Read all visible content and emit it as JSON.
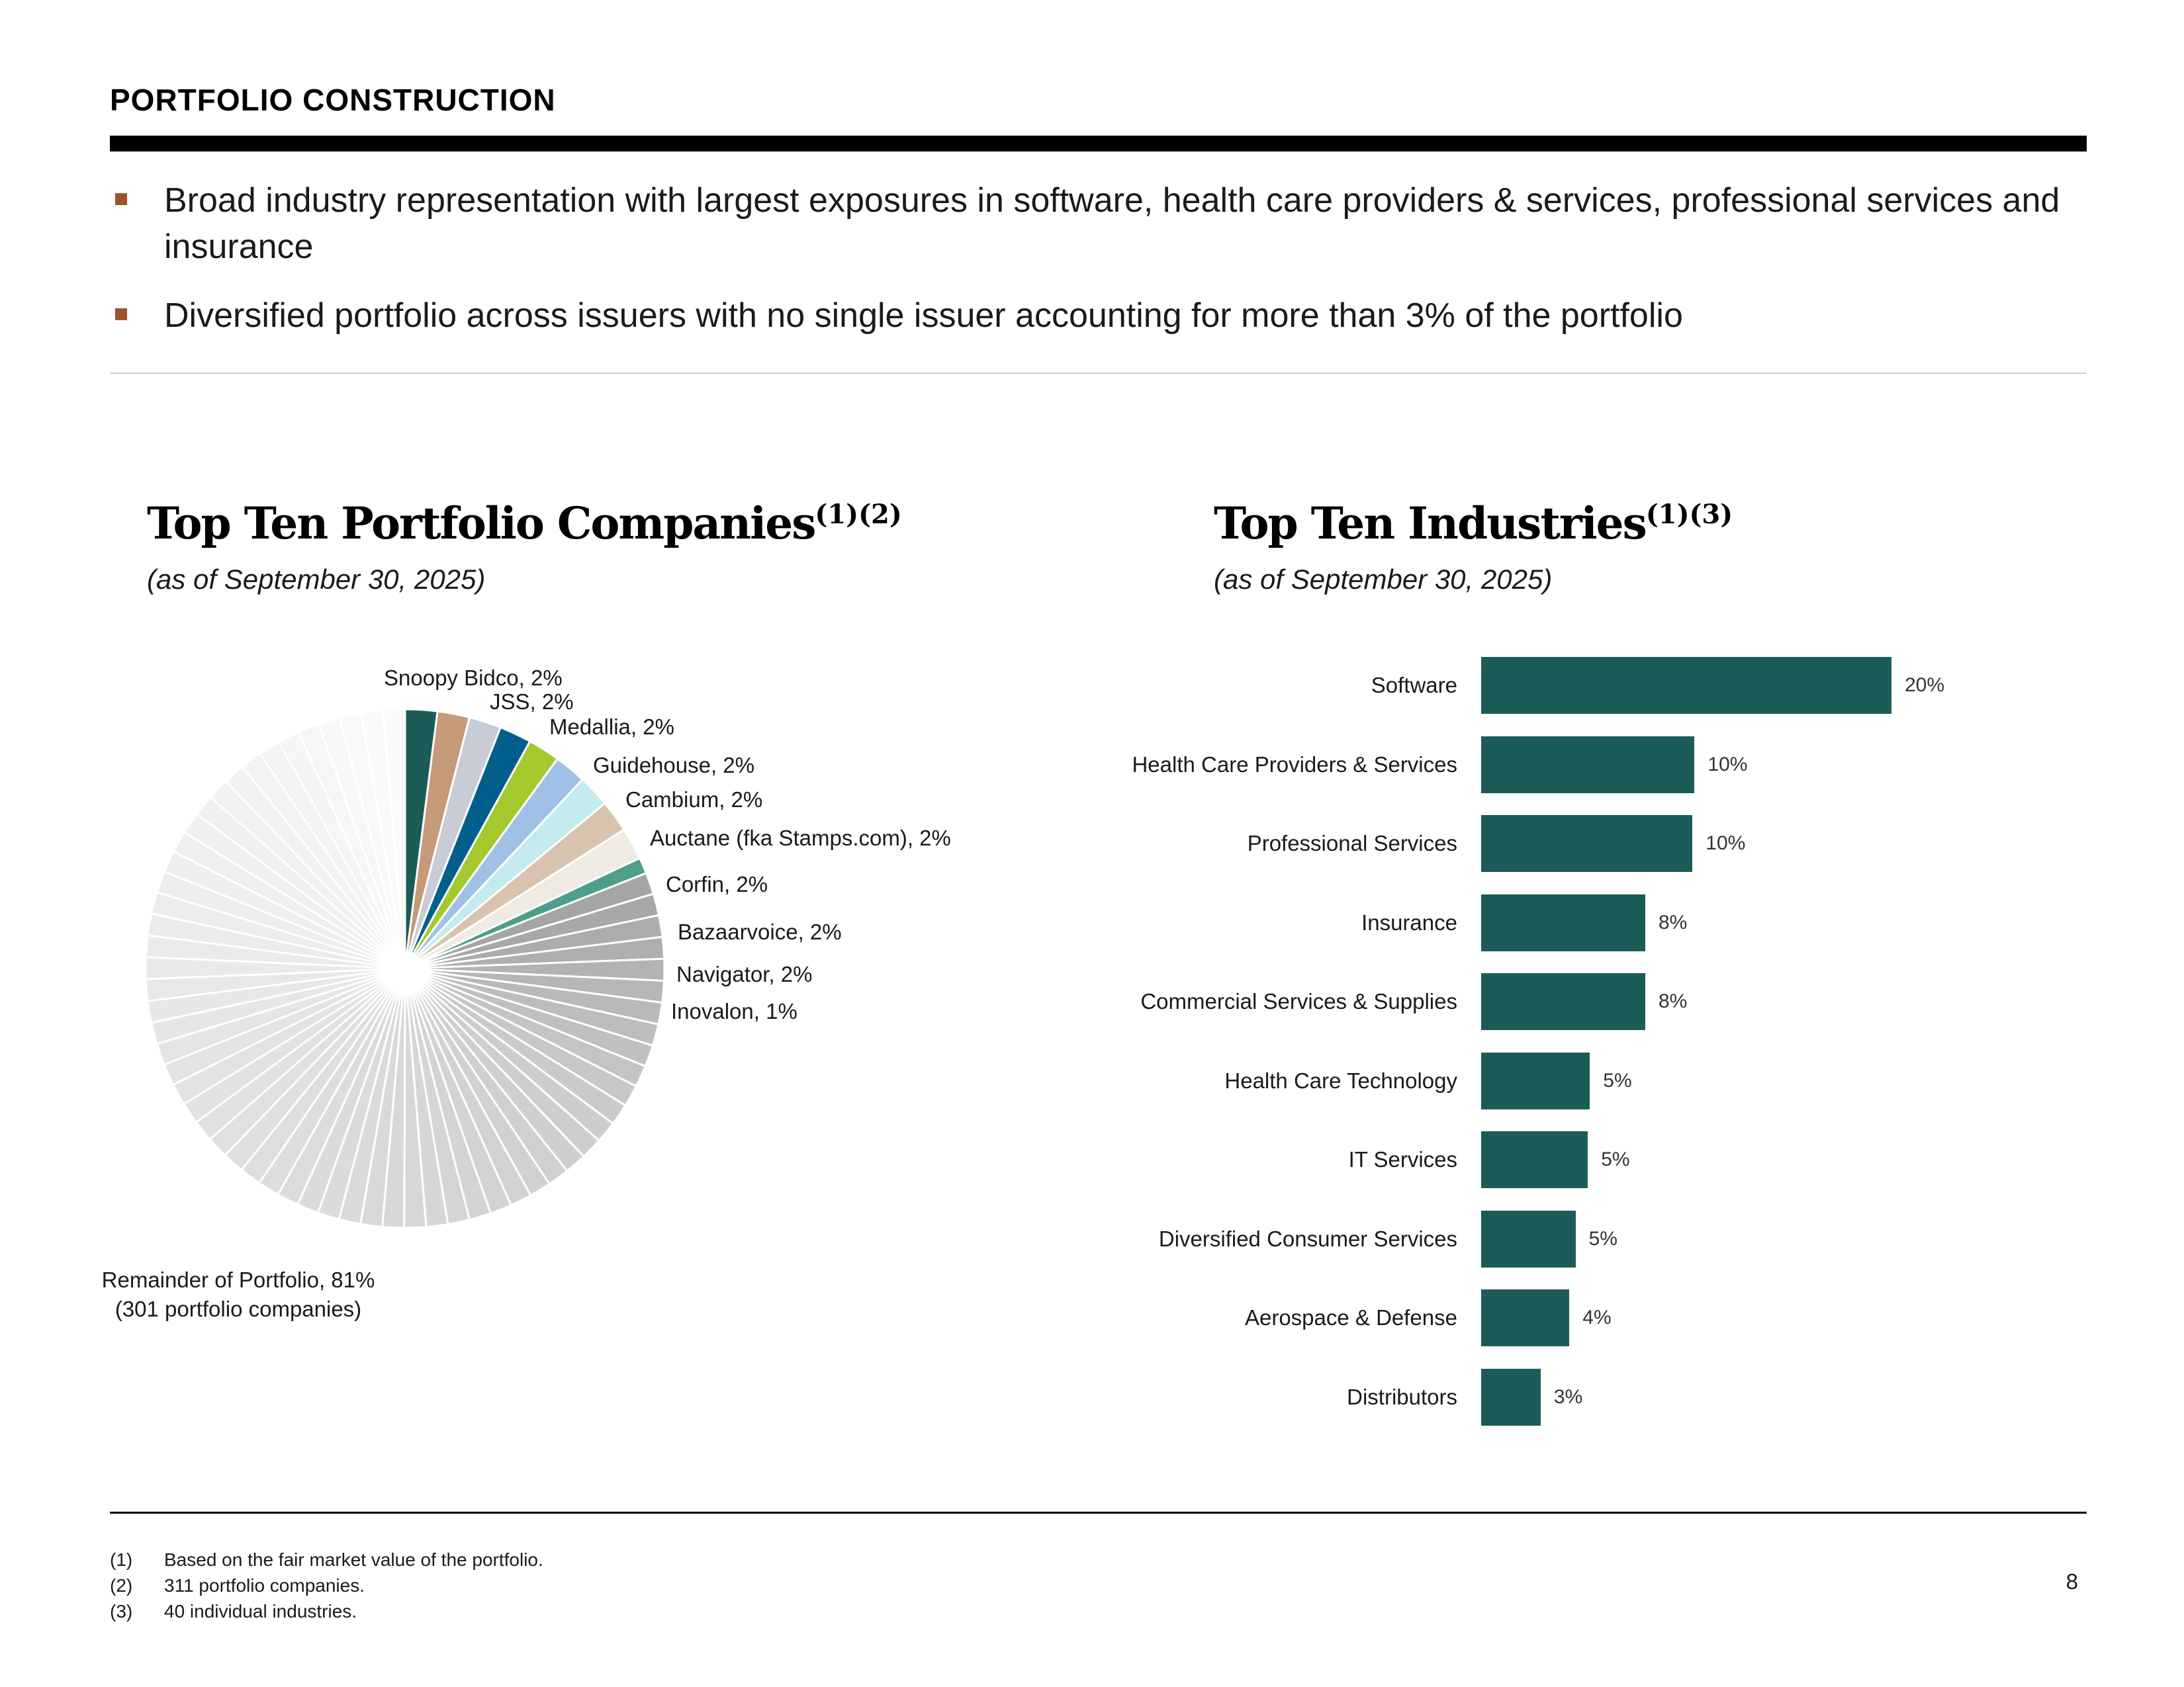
{
  "header": {
    "title": "PORTFOLIO CONSTRUCTION"
  },
  "bullets": [
    "Broad industry representation with largest exposures in software, health care providers & services, professional services and insurance",
    "Diversified portfolio across issuers with no single issuer accounting for more than 3% of the portfolio"
  ],
  "colors": {
    "bullet_marker": "#a0522d",
    "bar": "#1c5c58"
  },
  "companies_panel": {
    "title": "Top Ten Portfolio Companies",
    "title_sup": "(1)(2)",
    "subtitle": "(as of September 30, 2025)"
  },
  "industries_panel": {
    "title": "Top Ten Industries",
    "title_sup": "(1)(3)",
    "subtitle": "(as of September 30, 2025)"
  },
  "chart_data": [
    {
      "type": "pie",
      "title": "Top Ten Portfolio Companies",
      "slices": [
        {
          "label": "Snoopy Bidco, 2%",
          "value": 2,
          "color": "#1c5c58"
        },
        {
          "label": "JSS, 2%",
          "value": 2,
          "color": "#c49a78"
        },
        {
          "label": "Medallia, 2%",
          "value": 2,
          "color": "#c9ccd6"
        },
        {
          "label": "Guidehouse, 2%",
          "value": 2,
          "color": "#005f8c"
        },
        {
          "label": "Cambium, 2%",
          "value": 2,
          "color": "#a4c92c"
        },
        {
          "label": "Auctane (fka Stamps.com), 2%",
          "value": 2,
          "color": "#9fc1e6"
        },
        {
          "label": "Corfin, 2%",
          "value": 2,
          "color": "#c3ebeb"
        },
        {
          "label": "Bazaarvoice, 2%",
          "value": 2,
          "color": "#d8c3ae"
        },
        {
          "label": "Navigator, 2%",
          "value": 2,
          "color": "#f0ebe2"
        },
        {
          "label": "Inovalon, 1%",
          "value": 1,
          "color": "#4e9e8c"
        }
      ],
      "remainder": {
        "label": "Remainder of Portfolio, 81%",
        "sublabel": "(301 portfolio companies)",
        "value": 81
      }
    },
    {
      "type": "bar",
      "orientation": "horizontal",
      "title": "Top Ten Industries",
      "categories": [
        "Software",
        "Health Care Providers & Services",
        "Professional Services",
        "Insurance",
        "Commercial Services & Supplies",
        "Health Care Technology",
        "IT Services",
        "Diversified Consumer Services",
        "Aerospace & Defense",
        "Distributors"
      ],
      "values": [
        20,
        10.4,
        10.3,
        8,
        8,
        5.3,
        5.2,
        4.6,
        4.3,
        2.9
      ],
      "value_labels": [
        "20%",
        "10%",
        "10%",
        "8%",
        "8%",
        "5%",
        "5%",
        "5%",
        "4%",
        "3%"
      ],
      "xlim": [
        0,
        20
      ]
    }
  ],
  "footnotes": [
    {
      "num": "(1)",
      "text": "Based on the fair market value of the portfolio."
    },
    {
      "num": "(2)",
      "text": "311 portfolio companies."
    },
    {
      "num": "(3)",
      "text": "40 individual industries."
    }
  ],
  "page_number": "8"
}
